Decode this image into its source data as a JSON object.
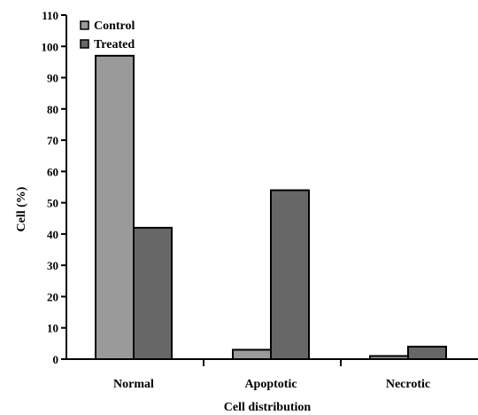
{
  "chart_data": {
    "type": "bar",
    "categories": [
      "Normal",
      "Apoptotic",
      "Necrotic"
    ],
    "series": [
      {
        "name": "Control",
        "values": [
          97,
          3,
          1
        ],
        "color": "#9a9a9a"
      },
      {
        "name": "Treated",
        "values": [
          42,
          54,
          4
        ],
        "color": "#676767"
      }
    ],
    "xlabel": "Cell distribution",
    "ylabel": "Cell (%)",
    "ylim": [
      0,
      110
    ],
    "yticks": [
      0,
      10,
      20,
      30,
      40,
      50,
      60,
      70,
      80,
      90,
      100,
      110
    ],
    "grid": false,
    "legend_position": "top-left"
  }
}
